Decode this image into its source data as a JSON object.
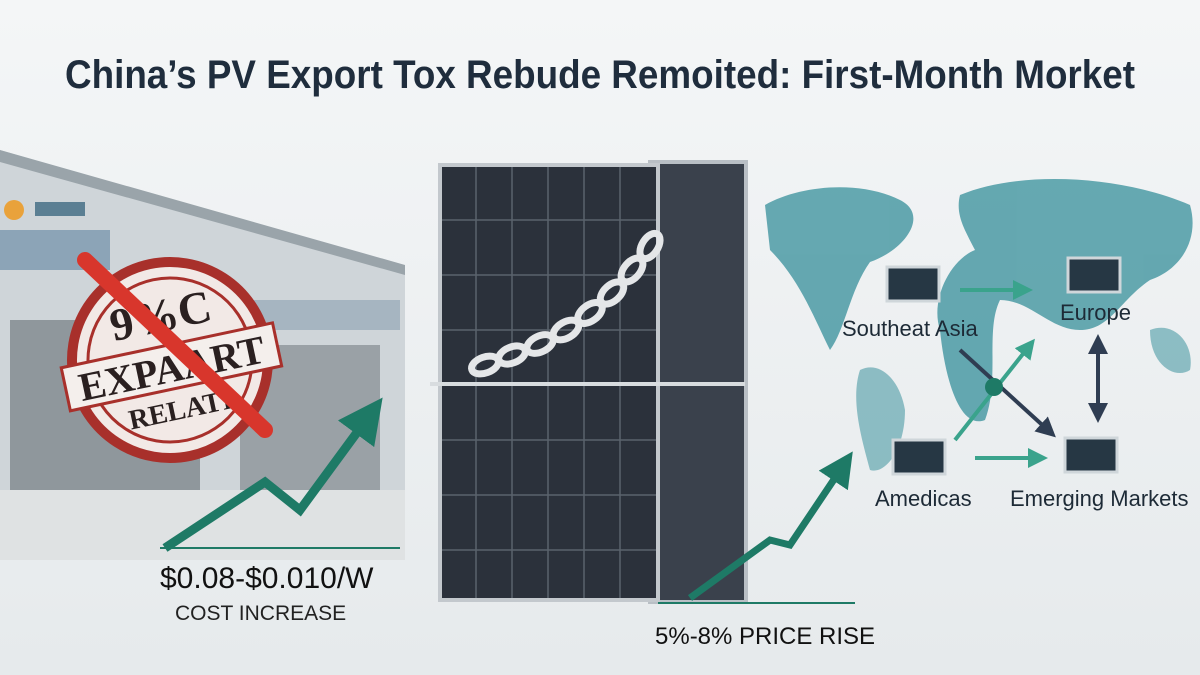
{
  "header": {
    "title": "China’s PV Export Tox Rebude Remoited: First-Month Morket"
  },
  "factory": {
    "stamp": {
      "line1": "9%C",
      "line2": "EXPAART",
      "line3": "RELATI"
    },
    "cost": {
      "value": "$0.08-$0.010/W",
      "caption": "COST INCREASE"
    }
  },
  "panel": {
    "price": "5%-8% PRICE RISE"
  },
  "map": {
    "nodes": [
      {
        "label": "Southeat Asia"
      },
      {
        "label": "Europe"
      },
      {
        "label": "Amedicas"
      },
      {
        "label": "Emerging Markets"
      }
    ]
  }
}
